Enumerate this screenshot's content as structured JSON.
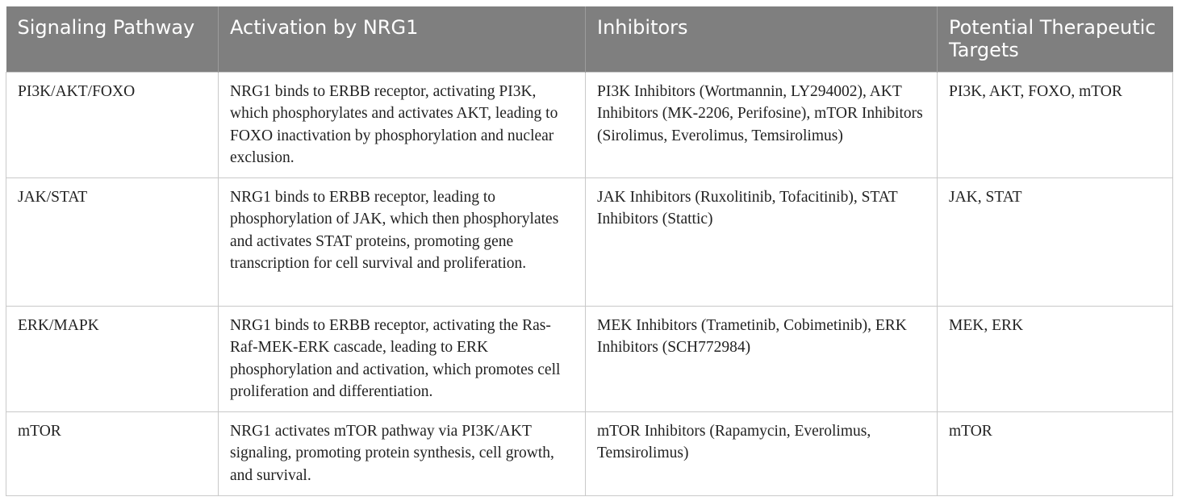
{
  "table": {
    "headers": [
      "Signaling Pathway",
      "Activation by NRG1",
      "Inhibitors",
      "Potential Therapeutic Targets"
    ],
    "rows": [
      {
        "pathway": "PI3K/AKT/FOXO",
        "activation": "NRG1 binds to ERBB receptor, activating PI3K, which phosphorylates and activates AKT, leading to FOXO inactivation by phosphorylation and nuclear exclusion.",
        "inhibitors": "PI3K Inhibitors (Wortmannin, LY294002), AKT Inhibitors (MK-2206, Perifosine), mTOR Inhibitors (Sirolimus, Everolimus, Temsirolimus)",
        "targets": "PI3K, AKT, FOXO, mTOR"
      },
      {
        "pathway": "JAK/STAT",
        "activation": "NRG1 binds to ERBB receptor, leading to phosphorylation of JAK, which then phosphorylates and activates STAT proteins, promoting gene transcription for cell survival and proliferation.",
        "inhibitors": "JAK Inhibitors (Ruxolitinib, Tofacitinib), STAT Inhibitors (Stattic)",
        "targets": "JAK, STAT"
      },
      {
        "pathway": "ERK/MAPK",
        "activation": "NRG1 binds to ERBB receptor, activating the Ras-Raf-MEK-ERK cascade, leading to ERK phosphorylation and activation, which promotes cell proliferation and differentiation.",
        "inhibitors": "MEK Inhibitors (Trametinib, Cobimetinib), ERK Inhibitors (SCH772984)",
        "targets": "MEK, ERK"
      },
      {
        "pathway": "mTOR",
        "activation": "NRG1 activates mTOR pathway via PI3K/AKT signaling, promoting protein synthesis, cell growth, and survival.",
        "inhibitors": "mTOR Inhibitors (Rapamycin, Everolimus, Temsirolimus)",
        "targets": "mTOR"
      }
    ]
  }
}
